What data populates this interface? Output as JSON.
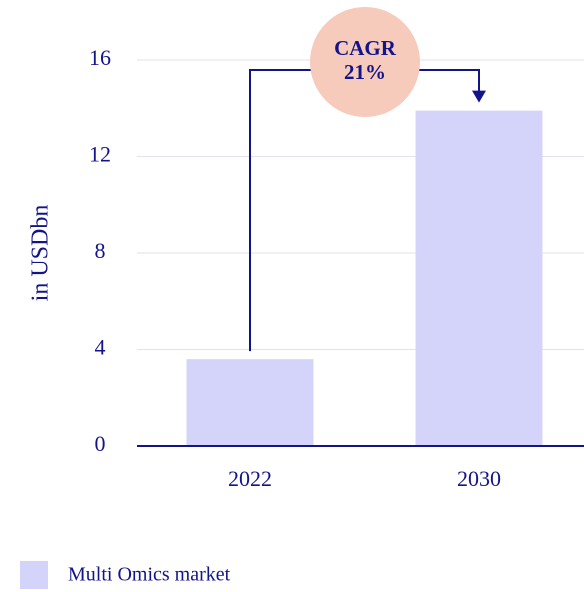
{
  "chart_data": {
    "type": "bar",
    "ylabel": "in USDbn",
    "categories": [
      "2022",
      "2030"
    ],
    "series": [
      {
        "name": "Multi Omics market",
        "color": "#d4d4fa",
        "values": [
          3.6,
          13.9
        ]
      }
    ],
    "ylim": [
      0,
      16
    ],
    "yticks": [
      0,
      4,
      8,
      12,
      16
    ],
    "grid": true,
    "annotation": {
      "lines": [
        "CAGR",
        "21%"
      ],
      "color": "#f7cbbb"
    }
  }
}
